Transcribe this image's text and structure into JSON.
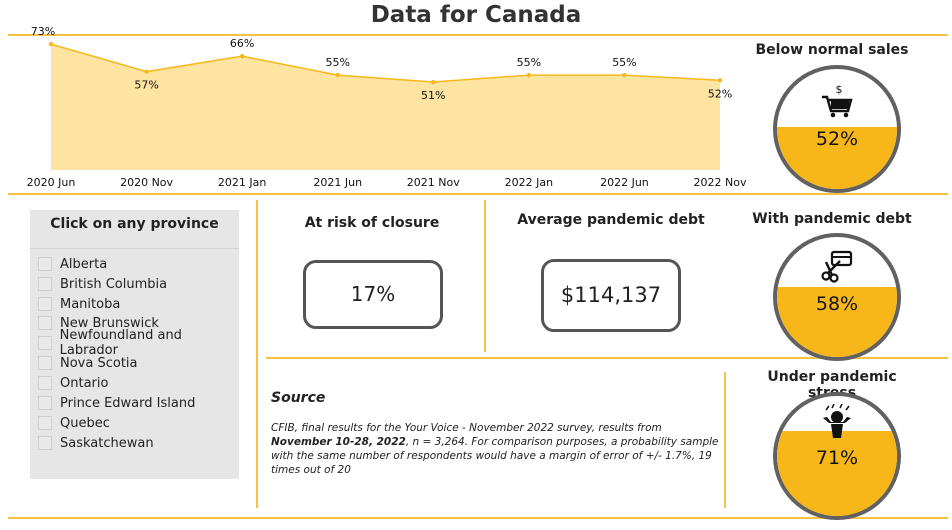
{
  "title": "Data for Canada",
  "chart_data": {
    "type": "area",
    "x": [
      "2020 Jun",
      "2020 Nov",
      "2021 Jan",
      "2021 Jun",
      "2021 Nov",
      "2022 Jan",
      "2022 Jun",
      "2022 Nov"
    ],
    "values": [
      73,
      57,
      66,
      55,
      51,
      55,
      55,
      52
    ],
    "labels": [
      "73%",
      "57%",
      "66%",
      "55%",
      "51%",
      "55%",
      "55%",
      "52%"
    ],
    "ylim": [
      0,
      80
    ],
    "grid": false,
    "colors": {
      "line": "#f5b81c",
      "fill": "#fde4a0"
    }
  },
  "gauges": [
    {
      "title": "Below normal sales",
      "value_label": "52%",
      "value": 52,
      "icon": "shopping-cart-dollar-icon"
    },
    {
      "title": "With pandemic debt",
      "value_label": "58%",
      "value": 58,
      "icon": "cut-credit-card-icon"
    },
    {
      "title": "Under pandemic stress",
      "value_label": "71%",
      "value": 71,
      "icon": "stressed-person-icon"
    }
  ],
  "provinces": {
    "heading": "Click on any province",
    "items": [
      "Alberta",
      "British Columbia",
      "Manitoba",
      "New Brunswick",
      "Newfoundland and Labrador",
      "Nova Scotia",
      "Ontario",
      "Prince Edward Island",
      "Quebec",
      "Saskatchewan"
    ]
  },
  "stats": {
    "closure": {
      "title": "At risk of closure",
      "value": "17%"
    },
    "debt": {
      "title": "Average pandemic debt",
      "value": "$114,137"
    }
  },
  "source": {
    "heading": "Source",
    "text_a": "CFIB, final results for the Your Voice - November 2022 survey, results from ",
    "text_b": "November 10-28, 2022",
    "text_c": ", ",
    "text_d": "n",
    "text_e": " = 3,264. For comparison purposes, a probability sample with the same number of respondents would have a margin of error of +/- 1.7%, 19 times out of 20"
  },
  "colors": {
    "accent": "#f5c242",
    "gauge_fill": "#f7b718",
    "gauge_border": "#616161"
  }
}
